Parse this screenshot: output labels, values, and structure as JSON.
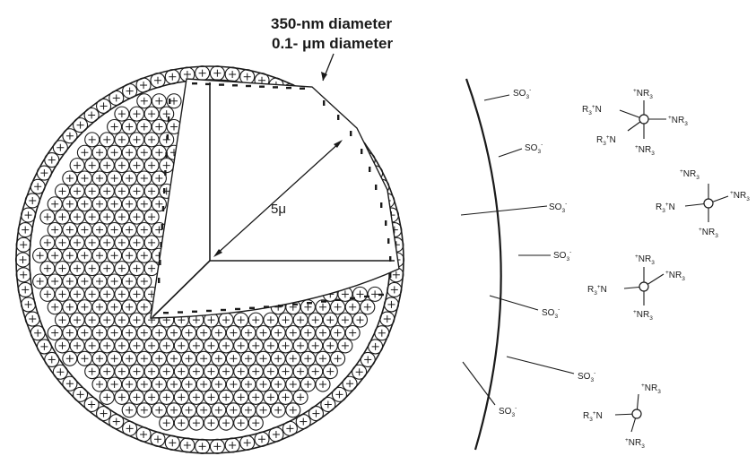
{
  "particle_size_labels": [
    "350-nm diameter",
    "0.1- μm diameter"
  ],
  "radius_label": "5μ",
  "sulfonate": {
    "main": "SO",
    "sub": "3",
    "sup": "-"
  },
  "amine_groups": {
    "nr3": {
      "sup": "+",
      "main": "NR",
      "sub": "3"
    },
    "r3n": {
      "main": "R",
      "sub": "3",
      "sup": "+",
      "tail": "N"
    }
  },
  "colors": {
    "ink": "#1a1a1a",
    "background": "#ffffff"
  }
}
